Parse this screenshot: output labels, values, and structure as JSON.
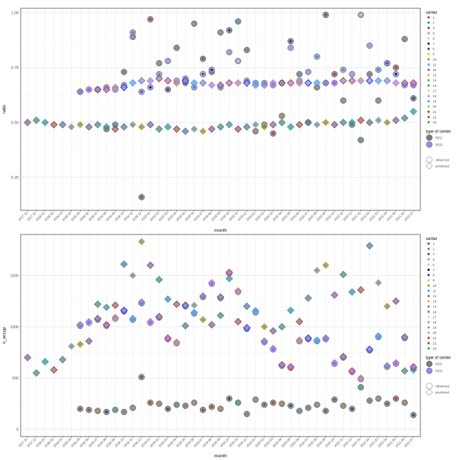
{
  "colors": {
    "panel_bg": "#ffffff",
    "grid_major": "#ebebeb",
    "grid_minor": "#f5f5f5",
    "panel_border": "#333333",
    "rec_fill": "#7a7a7a",
    "reg_fill": "#8c8cf0"
  },
  "chart_data": [
    {
      "type": "scatter",
      "xlabel": "month",
      "ylabel": "ratio",
      "ylim": [
        0.1,
        1.02
      ],
      "yticks": [
        0.25,
        0.5,
        0.75,
        1.0
      ],
      "ytick_labels": [
        "0.25",
        "0.50",
        "0.75",
        "1.00"
      ],
      "grid": true,
      "x": [
        "2017 11",
        "2017 12",
        "2018 01",
        "2018 02",
        "2018 03",
        "2018 04",
        "2018 05",
        "2018 06",
        "2018 07",
        "2018 08",
        "2018 09",
        "2018 10",
        "2018 11",
        "2018 12",
        "2019 01",
        "2019 02",
        "2019 03",
        "2019 04",
        "2019 05",
        "2019 06",
        "2019 07",
        "2019 08",
        "2019 09",
        "2019 10",
        "2019 11",
        "2019 12",
        "2020 01",
        "2020 02",
        "2020 03",
        "2020 04",
        "2020 05",
        "2020 06",
        "2020 07",
        "2020 08",
        "2020 09",
        "2020 10",
        "2020 11",
        "2020 12",
        "2021 01",
        "2021 02",
        "2021 03",
        "2021 04",
        "2021 05",
        "2021 06",
        "2021 07"
      ],
      "series": [
        {
          "name": "REC",
          "marker": "observed",
          "values": [
            null,
            null,
            null,
            null,
            null,
            null,
            null,
            null,
            null,
            0.47,
            0.49,
            0.73,
            0.89,
            0.16,
            0.97,
            0.77,
            0.65,
            0.84,
            0.68,
            0.95,
            0.79,
            0.73,
            0.91,
            0.92,
            0.96,
            0.83,
            0.46,
            0.49,
            0.45,
            0.53,
            0.87,
            0.72,
            0.5,
            0.66,
            0.99,
            0.72,
            0.6,
            0.49,
            0.42,
            0.72,
            0.6,
            0.77,
            0.75,
            0.88,
            0.61
          ]
        },
        {
          "name": "REG",
          "marker": "observed",
          "values": [
            null,
            null,
            null,
            null,
            null,
            null,
            0.64,
            0.65,
            0.65,
            0.66,
            0.65,
            0.67,
            0.91,
            0.64,
            0.66,
            0.72,
            0.78,
            0.69,
            0.7,
            0.66,
            0.72,
            0.74,
            0.66,
            0.82,
            0.78,
            0.69,
            0.68,
            0.68,
            0.67,
            0.68,
            0.84,
            0.69,
            0.73,
            0.8,
            0.68,
            0.68,
            0.74,
            0.72,
            0.99,
            0.85,
            0.74,
            0.77,
            0.72,
            0.67,
            0.67
          ]
        },
        {
          "name": "REC",
          "marker": "predicted",
          "values": [
            0.5,
            0.51,
            0.5,
            0.49,
            0.49,
            0.48,
            0.49,
            0.48,
            0.49,
            0.48,
            0.47,
            0.48,
            0.49,
            0.48,
            0.49,
            0.47,
            0.48,
            0.47,
            0.46,
            0.47,
            0.46,
            0.47,
            0.48,
            0.49,
            0.47,
            0.48,
            0.49,
            0.48,
            0.49,
            0.5,
            0.48,
            0.49,
            0.5,
            0.49,
            0.5,
            0.49,
            0.5,
            0.5,
            0.51,
            0.5,
            0.51,
            0.5,
            0.51,
            0.52,
            0.55
          ]
        },
        {
          "name": "REG",
          "marker": "predicted",
          "values": [
            null,
            null,
            null,
            null,
            null,
            null,
            0.64,
            0.65,
            0.65,
            0.65,
            0.66,
            0.66,
            0.68,
            0.69,
            0.69,
            0.7,
            0.69,
            0.68,
            0.69,
            0.68,
            0.68,
            0.67,
            0.67,
            0.68,
            0.68,
            0.68,
            0.67,
            0.67,
            0.68,
            0.68,
            0.68,
            0.68,
            0.68,
            0.68,
            0.68,
            0.68,
            0.69,
            0.69,
            0.69,
            0.69,
            0.69,
            0.69,
            0.68,
            0.68,
            0.68
          ]
        }
      ]
    },
    {
      "type": "scatter",
      "xlabel": "month",
      "ylabel": "n_occup",
      "ylim": [
        -70,
        1900
      ],
      "yticks": [
        0,
        500,
        1000,
        1500
      ],
      "ytick_labels": [
        "0",
        "500",
        "1000",
        "1500"
      ],
      "grid": true,
      "x": [
        "2017 11",
        "2017 12",
        "2018 01",
        "2018 02",
        "2018 03",
        "2018 04",
        "2018 05",
        "2018 06",
        "2018 07",
        "2018 08",
        "2018 09",
        "2018 10",
        "2018 11",
        "2018 12",
        "2019 01",
        "2019 02",
        "2019 03",
        "2019 04",
        "2019 05",
        "2019 06",
        "2019 07",
        "2019 08",
        "2019 09",
        "2019 10",
        "2019 11",
        "2019 12",
        "2020 01",
        "2020 02",
        "2020 03",
        "2020 04",
        "2020 05",
        "2020 06",
        "2020 07",
        "2020 08",
        "2020 09",
        "2020 10",
        "2020 11",
        "2020 12",
        "2021 01",
        "2021 02",
        "2021 03",
        "2021 04",
        "2021 05",
        "2021 06",
        "2021 07"
      ],
      "series": [
        {
          "name": "REC",
          "marker": "observed",
          "values": [
            null,
            null,
            null,
            null,
            null,
            null,
            200,
            190,
            180,
            170,
            190,
            170,
            210,
            510,
            260,
            250,
            200,
            240,
            230,
            260,
            190,
            220,
            200,
            300,
            260,
            150,
            290,
            240,
            260,
            250,
            230,
            180,
            210,
            240,
            180,
            290,
            230,
            200,
            410,
            280,
            300,
            250,
            300,
            260,
            140
          ]
        },
        {
          "name": "REG",
          "marker": "observed",
          "values": [
            null,
            null,
            null,
            null,
            null,
            null,
            1010,
            1040,
            1070,
            1010,
            1080,
            1150,
            1070,
            1230,
            1040,
            1090,
            880,
            840,
            1200,
            1130,
            1290,
            1420,
            1280,
            1520,
            1340,
            980,
            1140,
            850,
            780,
            620,
            600,
            860,
            880,
            860,
            880,
            640,
            700,
            560,
            490,
            770,
            900,
            610,
            640,
            890,
            600
          ]
        },
        {
          "name": "REC",
          "marker": "predicted",
          "values": [
            700,
            550,
            660,
            580,
            680,
            810,
            830,
            860,
            1220,
            1190,
            1210,
            1610,
            1500,
            1830,
            1600,
            1460,
            1270,
            1220,
            1010,
            1210,
            1070,
            1020,
            1110,
            1470,
            1050,
            1200,
            1160,
            1000,
            960,
            1000,
            1160,
            1050,
            1280,
            1550,
            1600,
            1310,
            1510,
            1340,
            1360,
            1790,
            1430,
            1200,
            1250,
            570,
            580
          ]
        },
        {
          "name": "REG",
          "marker": "predicted",
          "values": [
            null,
            null,
            null,
            null,
            null,
            null,
            1020,
            1050,
            1080,
            1020,
            1090,
            1160,
            1080,
            1240,
            1050,
            1100,
            890,
            850,
            1210,
            1140,
            1300,
            1430,
            1290,
            1530,
            1350,
            990,
            1150,
            860,
            790,
            630,
            610,
            870,
            890,
            870,
            890,
            650,
            710,
            570,
            500,
            780,
            910,
            620,
            650,
            900,
            610
          ]
        }
      ]
    }
  ],
  "legend": {
    "center_title": "center",
    "centers": [
      {
        "label": "1",
        "color": "#e41a1c"
      },
      {
        "label": "2",
        "color": "#377eb8"
      },
      {
        "label": "4",
        "color": "#7a3b1b"
      },
      {
        "label": "5",
        "color": "#f58231"
      },
      {
        "label": "6",
        "color": "#a6cee3"
      },
      {
        "label": "7",
        "color": "#111111"
      },
      {
        "label": "8",
        "color": "#1f1fb4"
      },
      {
        "label": "9",
        "color": "#e6c619"
      },
      {
        "label": "10",
        "color": "#66a61e"
      },
      {
        "label": "11",
        "color": "#17becf"
      },
      {
        "label": "12",
        "color": "#8e44ad"
      },
      {
        "label": "13",
        "color": "#bcbd22"
      },
      {
        "label": "14",
        "color": "#7f7f7f"
      },
      {
        "label": "15",
        "color": "#1f9e89"
      },
      {
        "label": "17",
        "color": "#ffd92f"
      },
      {
        "label": "18",
        "color": "#e377c2"
      },
      {
        "label": "19",
        "color": "#00bcd4"
      },
      {
        "label": "20",
        "color": "#9acd32"
      },
      {
        "label": "21",
        "color": "#8b4513"
      },
      {
        "label": "22",
        "color": "#d62728"
      },
      {
        "label": "23",
        "color": "#2ca02c"
      }
    ],
    "type_title": "type of center",
    "types": [
      {
        "label": "REC",
        "color": "#7a7a7a"
      },
      {
        "label": "REG",
        "color": "#8c8cf0"
      }
    ],
    "marker_items": [
      {
        "label": "observed",
        "shape": "circle"
      },
      {
        "label": "predicted",
        "shape": "diamond"
      }
    ]
  }
}
